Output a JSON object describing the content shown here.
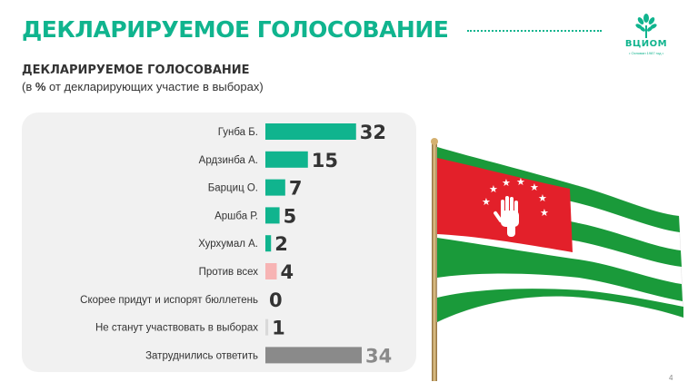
{
  "slide": {
    "title": "ДЕКЛАРИРУЕМОЕ ГОЛОСОВАНИЕ",
    "page_number": "4"
  },
  "logo": {
    "name": "ВЦИОМ",
    "tagline": "• Основан 1987 год •"
  },
  "chart_data": {
    "type": "bar",
    "orientation": "horizontal",
    "title": "ДЕКЛАРИРУЕМОЕ ГОЛОСОВАНИЕ",
    "subtitle_prefix": "(в ",
    "subtitle_unit": "%",
    "subtitle_suffix": " от декларирующих участие в выборах)",
    "categories": [
      "Гунба Б.",
      "Ардзинба А.",
      "Барциц О.",
      "Аршба Р.",
      "Хурхумал А.",
      "Против всех",
      "Скорее придут и испорят бюллетень",
      "Не станут участвовать в выборах",
      "Затруднились ответить"
    ],
    "values": [
      32,
      15,
      7,
      5,
      2,
      4,
      0,
      1,
      34
    ],
    "bar_colors": [
      "#10b48e",
      "#10b48e",
      "#10b48e",
      "#10b48e",
      "#10b48e",
      "#f7b4b4",
      "#10b48e",
      "#d9d9d9",
      "#8a8a8a"
    ],
    "label_colors": [
      "#333333",
      "#333333",
      "#333333",
      "#333333",
      "#333333",
      "#333333",
      "#333333",
      "#333333",
      "#8a8a8a"
    ],
    "xlim": [
      0,
      34
    ],
    "grid": false,
    "legend": "none"
  },
  "flag": {
    "stripe_green": "#1a9a3a",
    "field_red": "#e3202a",
    "stripe_white": "#ffffff",
    "pole": "#c9a86a"
  }
}
